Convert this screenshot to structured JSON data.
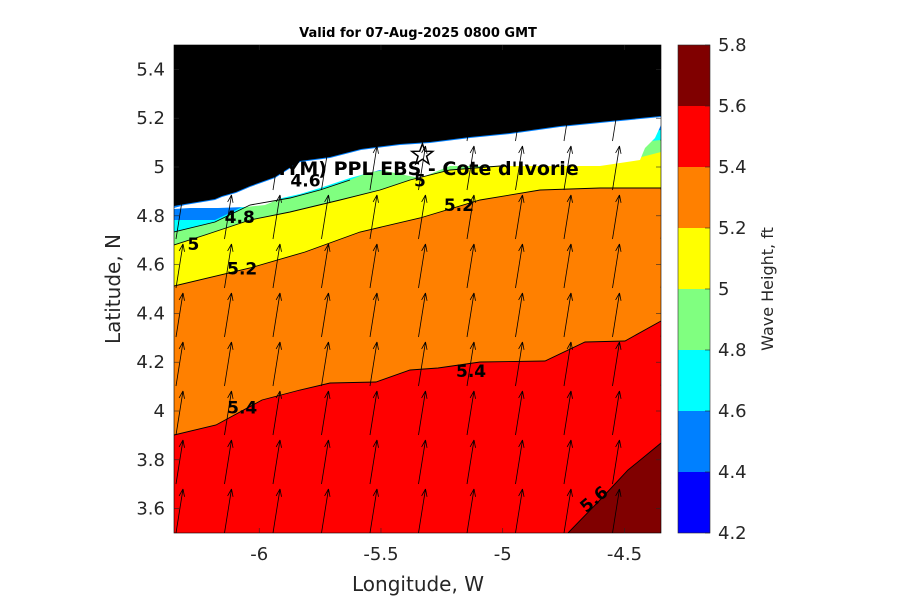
{
  "chart_data": {
    "type": "heatmap",
    "subtype": "filled-contour map with wave-direction vectors",
    "title": "Valid for 07-Aug-2025 0800 GMT",
    "xlabel": "Longitude, W",
    "ylabel": "Latitude, N",
    "xlim": [
      -6.35,
      -4.35
    ],
    "ylim": [
      3.5,
      5.5
    ],
    "x_ticks": [
      -6,
      -5.5,
      -5,
      -4.5
    ],
    "x_tick_labels": [
      "-6",
      "-5.5",
      "-5",
      "-4.5"
    ],
    "y_ticks": [
      3.6,
      3.8,
      4,
      4.2,
      4.4,
      4.6,
      4.8,
      5,
      5.2,
      5.4
    ],
    "y_tick_labels": [
      "3.6",
      "3.8",
      "4",
      "4.2",
      "4.4",
      "4.6",
      "4.8",
      "5",
      "5.2",
      "5.4"
    ],
    "colorbar": {
      "label": "Wave Height, ft",
      "range": [
        4.2,
        5.8
      ],
      "ticks": [
        "4.2",
        "4.4",
        "4.6",
        "4.8",
        "5",
        "5.2",
        "5.4",
        "5.6",
        "5.8"
      ],
      "bands": [
        {
          "from": 4.2,
          "to": 4.4,
          "color": "#0000ff"
        },
        {
          "from": 4.4,
          "to": 4.6,
          "color": "#0080ff"
        },
        {
          "from": 4.6,
          "to": 4.8,
          "color": "#00ffff"
        },
        {
          "from": 4.8,
          "to": 5.0,
          "color": "#80ff80"
        },
        {
          "from": 5.0,
          "to": 5.2,
          "color": "#ffff00"
        },
        {
          "from": 5.2,
          "to": 5.4,
          "color": "#ff8000"
        },
        {
          "from": 5.4,
          "to": 5.6,
          "color": "#ff0000"
        },
        {
          "from": 5.6,
          "to": 5.8,
          "color": "#800000"
        }
      ]
    },
    "contour_labels": [
      {
        "text": "4.6",
        "lon": -5.81,
        "lat": 4.92
      },
      {
        "text": "4.8",
        "lon": -6.08,
        "lat": 4.77
      },
      {
        "text": "5",
        "lon": -6.27,
        "lat": 4.66
      },
      {
        "text": "5",
        "lon": -5.34,
        "lat": 4.92
      },
      {
        "text": "5.2",
        "lon": -5.18,
        "lat": 4.82
      },
      {
        "text": "5.2",
        "lon": -6.07,
        "lat": 4.56
      },
      {
        "text": "5.4",
        "lon": -5.13,
        "lat": 4.14
      },
      {
        "text": "5.4",
        "lon": -6.07,
        "lat": 3.99
      },
      {
        "text": "5.6",
        "lon": -4.61,
        "lat": 3.62
      }
    ],
    "site_label": "(ONHYM) PPL EBS  - Cote d'Ivorie",
    "site_marker": {
      "lon": -5.33,
      "lat": 5.05
    },
    "colors": {
      "land": "#000000",
      "coast_strip": "#ffffff",
      "arrow": "#000000",
      "contour_line": "#000000"
    }
  }
}
